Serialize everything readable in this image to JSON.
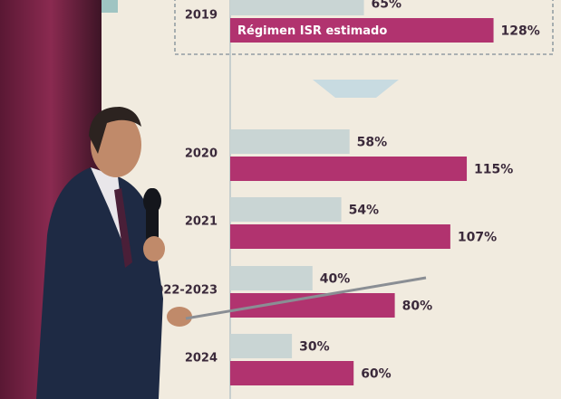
{
  "chart_data": {
    "type": "bar",
    "orientation": "horizontal",
    "categories": [
      "2019",
      "2020",
      "2021",
      "2022-2023",
      "2024"
    ],
    "series": [
      {
        "color": "#c9d5d4",
        "values": [
          65,
          58,
          54,
          40,
          30
        ],
        "value_labels": [
          "65%",
          "58%",
          "54%",
          "40%",
          "30%"
        ]
      },
      {
        "name": "Régimen ISR estimado",
        "color": "#b1336f",
        "values": [
          128,
          115,
          107,
          80,
          60
        ],
        "value_labels": [
          "128%",
          "115%",
          "107%",
          "80%",
          "60%"
        ]
      }
    ]
  }
}
